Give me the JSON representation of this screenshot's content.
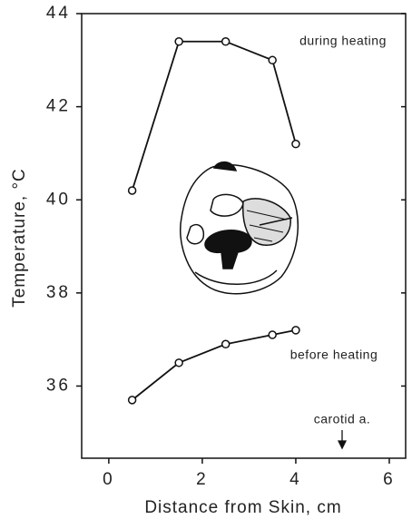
{
  "chart_data": {
    "type": "line",
    "xlabel": "Distance from Skin, cm",
    "ylabel": "Temperature, °C",
    "x": [
      0.5,
      1.5,
      2.5,
      3.5,
      4
    ],
    "series": [
      {
        "name": "during heating",
        "color": "#111111",
        "values": [
          40.2,
          43.4,
          43.4,
          43.0,
          41.2
        ]
      },
      {
        "name": "before heating",
        "color": "#111111",
        "values": [
          35.7,
          36.5,
          36.9,
          37.1,
          37.2
        ]
      }
    ],
    "annotations": [
      "carotid a."
    ],
    "xlim": [
      -0.58,
      6.35
    ],
    "ylim": [
      34.45,
      44
    ],
    "xticks": [
      0,
      2,
      4,
      6
    ],
    "yticks": [
      36,
      38,
      40,
      42,
      44
    ]
  }
}
